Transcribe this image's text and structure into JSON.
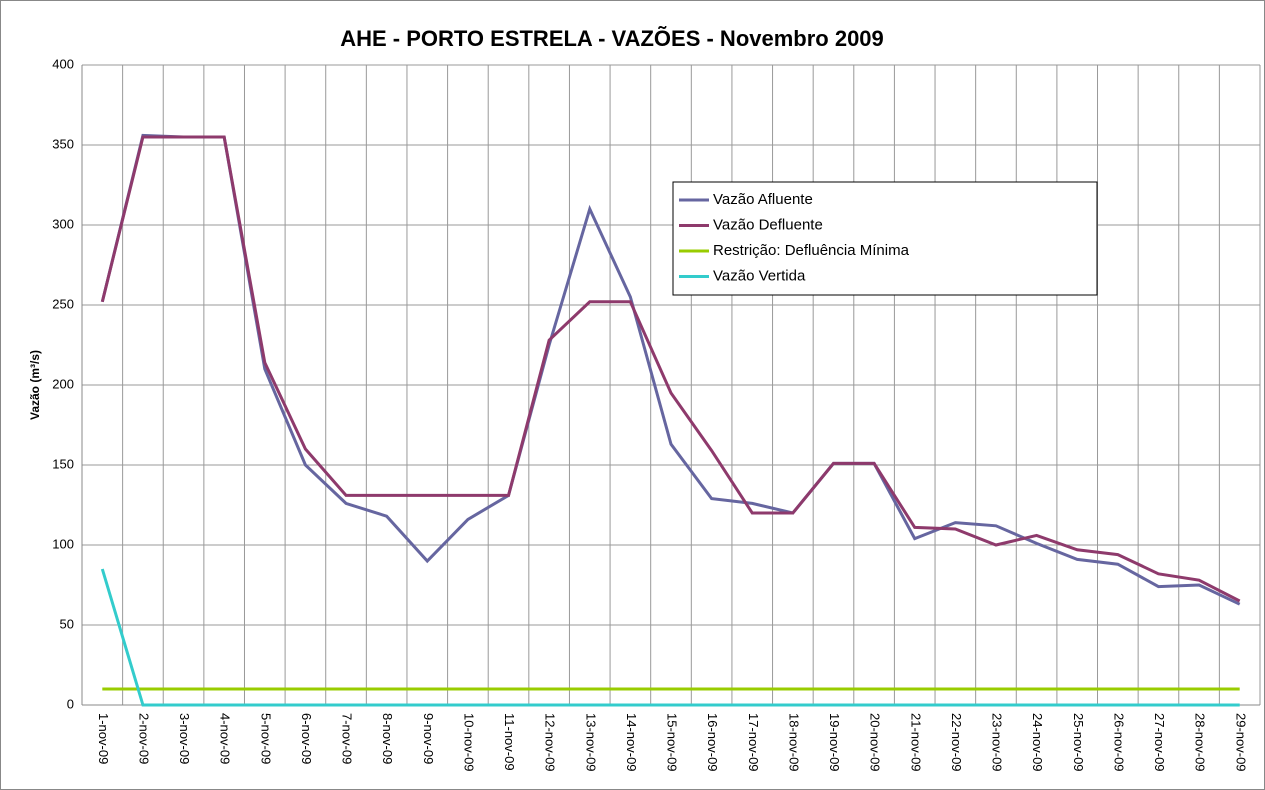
{
  "chart_data": {
    "type": "line",
    "title": "AHE - PORTO ESTRELA - VAZÕES - Novembro 2009",
    "y_label": "Vazão (m³/s)",
    "categories": [
      "1-nov-09",
      "2-nov-09",
      "3-nov-09",
      "4-nov-09",
      "5-nov-09",
      "6-nov-09",
      "7-nov-09",
      "8-nov-09",
      "9-nov-09",
      "10-nov-09",
      "11-nov-09",
      "12-nov-09",
      "13-nov-09",
      "14-nov-09",
      "15-nov-09",
      "16-nov-09",
      "17-nov-09",
      "18-nov-09",
      "19-nov-09",
      "20-nov-09",
      "21-nov-09",
      "22-nov-09",
      "23-nov-09",
      "24-nov-09",
      "25-nov-09",
      "26-nov-09",
      "27-nov-09",
      "28-nov-09",
      "29-nov-09"
    ],
    "series": [
      {
        "name": "Vazão Afluente",
        "color": "#6666a0",
        "values": [
          252,
          356,
          355,
          355,
          210,
          150,
          126,
          118,
          90,
          116,
          131,
          225,
          310,
          255,
          163,
          129,
          126,
          120,
          151,
          151,
          104,
          114,
          112,
          101,
          91,
          88,
          74,
          75,
          63
        ]
      },
      {
        "name": "Vazão Defluente",
        "color": "#8e3a6c",
        "values": [
          252,
          355,
          355,
          355,
          214,
          160,
          131,
          131,
          131,
          131,
          131,
          228,
          252,
          252,
          195,
          159,
          120,
          120,
          151,
          151,
          111,
          110,
          100,
          106,
          97,
          94,
          82,
          78,
          65
        ]
      },
      {
        "name": "Restrição: Defluência Mínima",
        "color": "#99cc00",
        "values": [
          10,
          10,
          10,
          10,
          10,
          10,
          10,
          10,
          10,
          10,
          10,
          10,
          10,
          10,
          10,
          10,
          10,
          10,
          10,
          10,
          10,
          10,
          10,
          10,
          10,
          10,
          10,
          10,
          10
        ]
      },
      {
        "name": "Vazão Vertida",
        "color": "#33cccc",
        "values": [
          85,
          0,
          0,
          0,
          0,
          0,
          0,
          0,
          0,
          0,
          0,
          0,
          0,
          0,
          0,
          0,
          0,
          0,
          0,
          0,
          0,
          0,
          0,
          0,
          0,
          0,
          0,
          0,
          0
        ]
      }
    ],
    "ylim": [
      0,
      400
    ],
    "yticks": [
      0,
      50,
      100,
      150,
      200,
      250,
      300,
      350,
      400
    ],
    "grid": true,
    "legend": "upper right"
  }
}
